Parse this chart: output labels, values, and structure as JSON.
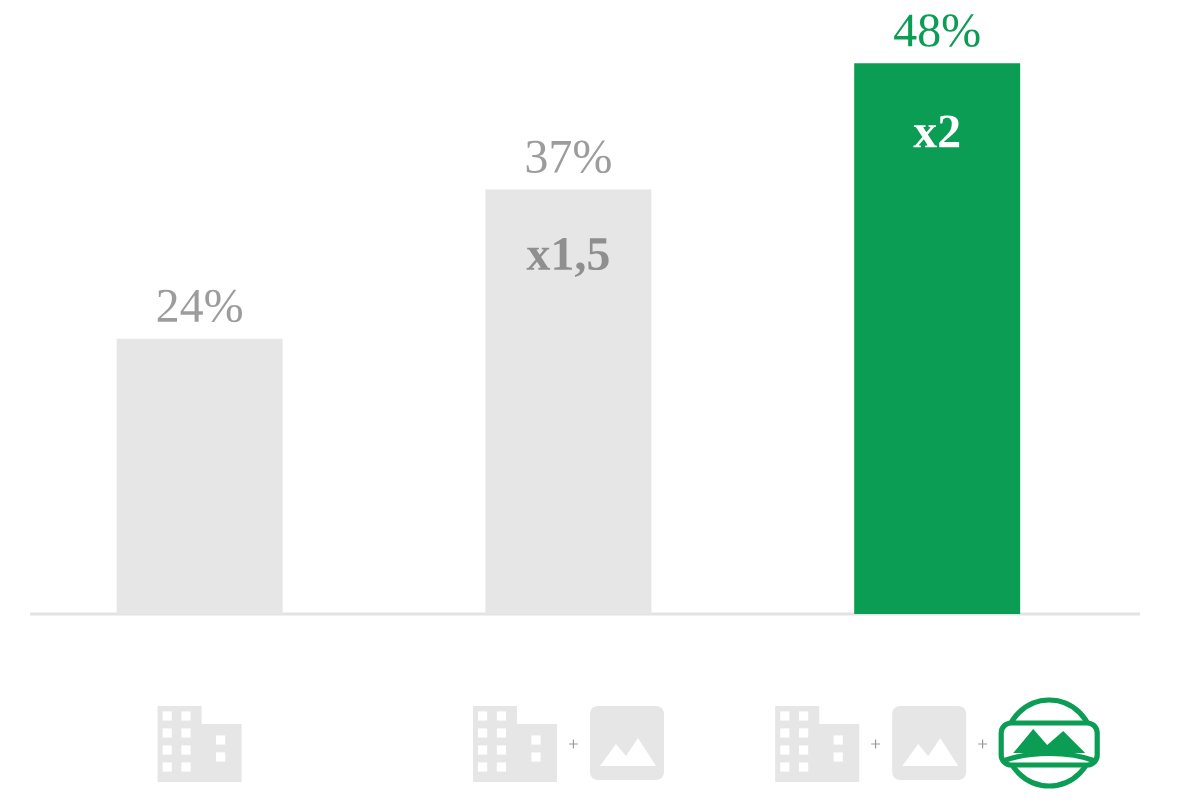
{
  "chart_data": {
    "type": "bar",
    "categories": [
      null,
      null,
      null
    ],
    "values": [
      24,
      37,
      48
    ],
    "colors": [
      "#e6e6e6",
      "#e6e6e6",
      "#0a9d53"
    ],
    "value_labels": [
      "24%",
      "37%",
      "48%"
    ],
    "annotations": [
      "x1,5",
      "x2"
    ]
  }
}
